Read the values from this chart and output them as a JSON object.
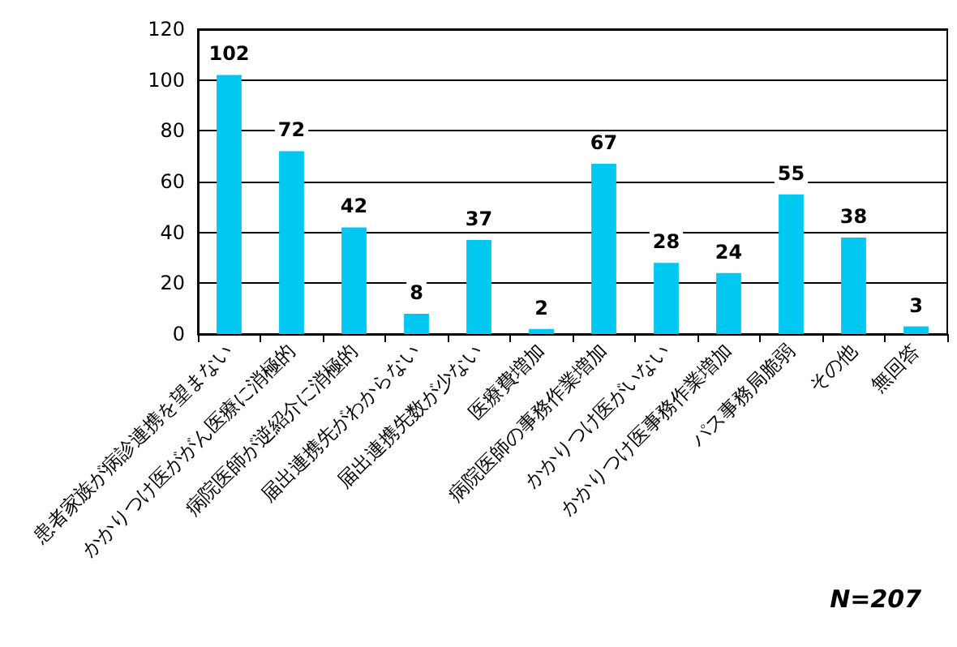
{
  "chart_data": {
    "type": "bar",
    "categories": [
      "患者家族が病診連携を望まない",
      "かかりつけ医ががん医療に消極的",
      "病院医師が逆紹介に消極的",
      "届出連携先がわからない",
      "届出連携先数が少ない",
      "医療費増加",
      "病院医師の事務作業増加",
      "かかりつけ医がいない",
      "かかりつけ医事務作業増加",
      "パス事務局脆弱",
      "その他",
      "無回答"
    ],
    "values": [
      102,
      72,
      42,
      8,
      37,
      2,
      67,
      28,
      24,
      55,
      38,
      3
    ],
    "color": "#00c8f0",
    "ylim": [
      0,
      120
    ],
    "yticks": [
      0,
      20,
      40,
      60,
      80,
      100,
      120
    ],
    "grid": "y",
    "data_labels": true,
    "annotations": [
      "N=207"
    ]
  }
}
